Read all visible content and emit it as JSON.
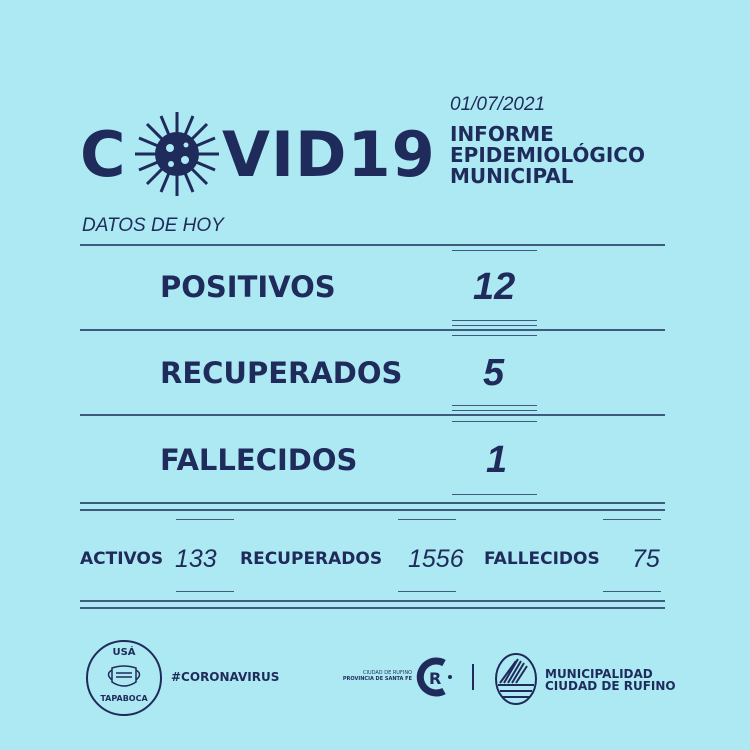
{
  "header": {
    "title_c": "C",
    "title_rest": "VID19",
    "date": "01/07/2021",
    "subtitle_lines": [
      "INFORME",
      "EPIDEMIOLÓGICO",
      "MUNICIPAL"
    ],
    "section": "DATOS DE HOY"
  },
  "today": [
    {
      "label": "POSITIVOS",
      "value": "12"
    },
    {
      "label": "RECUPERADOS",
      "value": "5"
    },
    {
      "label": "FALLECIDOS",
      "value": "1"
    }
  ],
  "totals": [
    {
      "label": "ACTIVOS",
      "value": "133"
    },
    {
      "label": "RECUPERADOS",
      "value": "1556"
    },
    {
      "label": "FALLECIDOS",
      "value": "75"
    }
  ],
  "footer": {
    "badge_top": "USÁ",
    "badge_bottom": "TAPABOCA",
    "hashtag": "#CORONAVIRUS",
    "city_small_1": "CIUDAD DE RUFINO",
    "city_small_2": "PROVINCIA DE SANTA FE",
    "muni_1": "MUNICIPALIDAD",
    "muni_2": "CIUDAD DE RUFINO"
  },
  "colors": {
    "background": "#ade9f3",
    "text": "#1f2b5a"
  }
}
